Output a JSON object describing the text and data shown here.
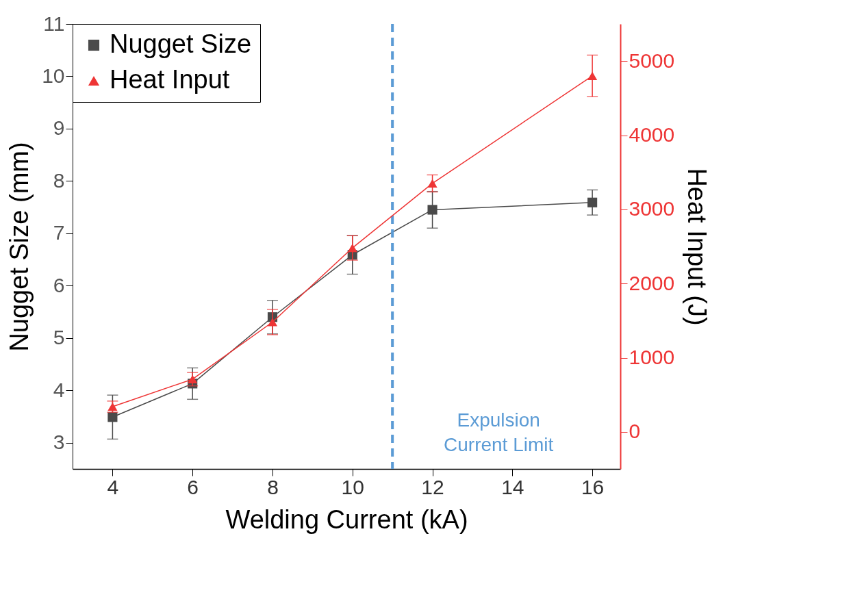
{
  "chart_data": {
    "type": "line",
    "xlabel": "Welding Current (kA)",
    "ylabel": "Nugget Size (mm)",
    "y2label": "Heat Input (J)",
    "x": [
      4,
      6,
      8,
      10,
      12,
      16
    ],
    "xlim": [
      3,
      16.7
    ],
    "xticks": [
      4,
      6,
      8,
      10,
      12,
      14,
      16
    ],
    "ylim": [
      2.5,
      11
    ],
    "yticks": [
      3,
      4,
      5,
      6,
      7,
      8,
      9,
      10,
      11
    ],
    "y2lim": [
      -500,
      5500
    ],
    "y2ticks": [
      0,
      1000,
      2000,
      3000,
      4000,
      5000
    ],
    "series": [
      {
        "name": "Nugget Size",
        "color": "#4a4a4a",
        "marker": "square",
        "values": [
          3.49,
          4.13,
          5.4,
          6.59,
          7.45,
          7.59
        ],
        "errors": [
          0.42,
          0.3,
          0.32,
          0.37,
          0.35,
          0.24
        ]
      },
      {
        "name": "Heat Input",
        "color": "#ee3535",
        "marker": "triangle",
        "axis": "y2",
        "values": [
          340,
          710,
          1480,
          2480,
          3350,
          4800
        ],
        "errors": [
          75,
          90,
          170,
          165,
          115,
          280
        ]
      }
    ],
    "ref_lines": [
      {
        "axis": "x",
        "value": 11,
        "label": "Expulsion Current Limit",
        "color": "#5b9bd5",
        "line_style": "dashed"
      }
    ],
    "grid": false,
    "legend": "top left",
    "line_style": "solid"
  }
}
